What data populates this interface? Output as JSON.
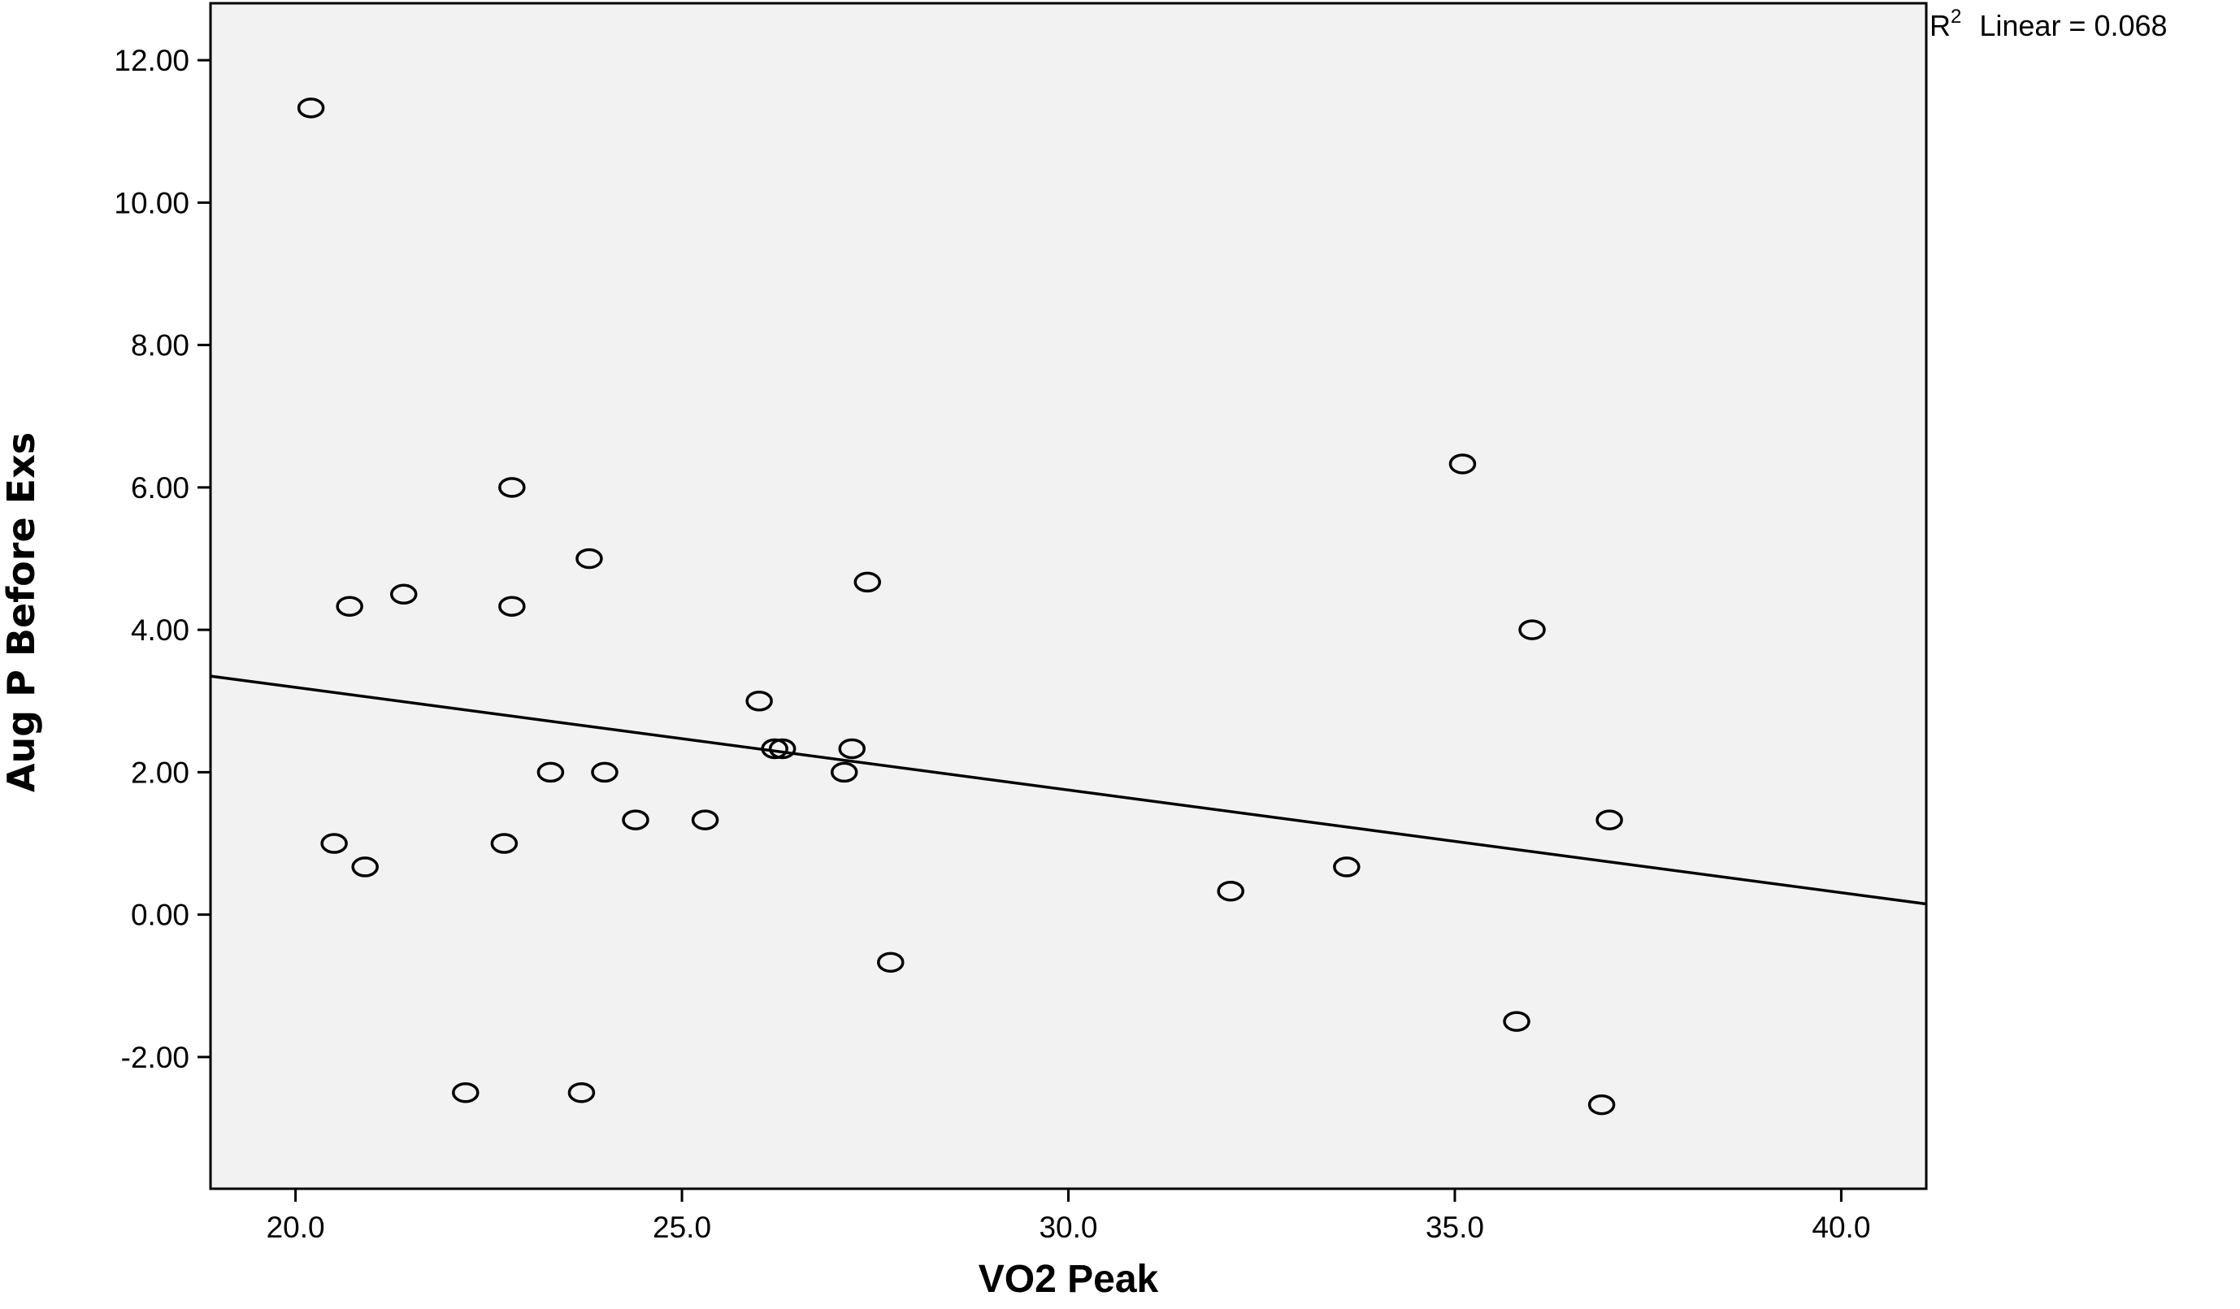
{
  "chart_data": {
    "type": "scatter",
    "title": "",
    "xlabel": "VO2 Peak",
    "ylabel": "Aug P Before Exs",
    "xlim": [
      18.9,
      41.1
    ],
    "ylim": [
      -3.85,
      12.8
    ],
    "x_ticks": [
      {
        "value": 20.0,
        "label": "20.0"
      },
      {
        "value": 25.0,
        "label": "25.0"
      },
      {
        "value": 30.0,
        "label": "30.0"
      },
      {
        "value": 35.0,
        "label": "35.0"
      },
      {
        "value": 40.0,
        "label": "40.0"
      }
    ],
    "y_ticks": [
      {
        "value": -2.0,
        "label": "-2.00"
      },
      {
        "value": 0.0,
        "label": "0.00"
      },
      {
        "value": 2.0,
        "label": "2.00"
      },
      {
        "value": 4.0,
        "label": "4.00"
      },
      {
        "value": 6.0,
        "label": "6.00"
      },
      {
        "value": 8.0,
        "label": "8.00"
      },
      {
        "value": 10.0,
        "label": "10.00"
      },
      {
        "value": 12.0,
        "label": "12.00"
      }
    ],
    "grid": false,
    "legend": "none",
    "background_color": "#f2f2f2",
    "marker_color": "#000000",
    "points": [
      {
        "x": 20.2,
        "y": 11.33
      },
      {
        "x": 20.5,
        "y": 1.0
      },
      {
        "x": 20.7,
        "y": 4.33
      },
      {
        "x": 20.9,
        "y": 0.67
      },
      {
        "x": 21.4,
        "y": 4.5
      },
      {
        "x": 22.2,
        "y": -2.5
      },
      {
        "x": 22.7,
        "y": 1.0
      },
      {
        "x": 22.8,
        "y": 6.0
      },
      {
        "x": 22.8,
        "y": 4.33
      },
      {
        "x": 23.3,
        "y": 2.0
      },
      {
        "x": 23.7,
        "y": -2.5
      },
      {
        "x": 23.8,
        "y": 5.0
      },
      {
        "x": 24.0,
        "y": 2.0
      },
      {
        "x": 24.4,
        "y": 1.33
      },
      {
        "x": 25.3,
        "y": 1.33
      },
      {
        "x": 26.0,
        "y": 3.0
      },
      {
        "x": 26.2,
        "y": 2.33
      },
      {
        "x": 26.3,
        "y": 2.33
      },
      {
        "x": 27.1,
        "y": 2.0
      },
      {
        "x": 27.2,
        "y": 2.33
      },
      {
        "x": 27.4,
        "y": 4.67
      },
      {
        "x": 27.7,
        "y": -0.67
      },
      {
        "x": 32.1,
        "y": 0.33
      },
      {
        "x": 33.6,
        "y": 0.67
      },
      {
        "x": 35.1,
        "y": 6.33
      },
      {
        "x": 35.8,
        "y": -1.5
      },
      {
        "x": 36.0,
        "y": 4.0
      },
      {
        "x": 36.9,
        "y": -2.67
      },
      {
        "x": 37.0,
        "y": 1.33
      }
    ],
    "fit_line": {
      "type": "linear",
      "x": [
        18.9,
        41.1
      ],
      "y": [
        3.35,
        0.15
      ],
      "r2_prefix": "R",
      "r2_superscript": "2",
      "r2_text": "Linear = 0.068"
    }
  }
}
